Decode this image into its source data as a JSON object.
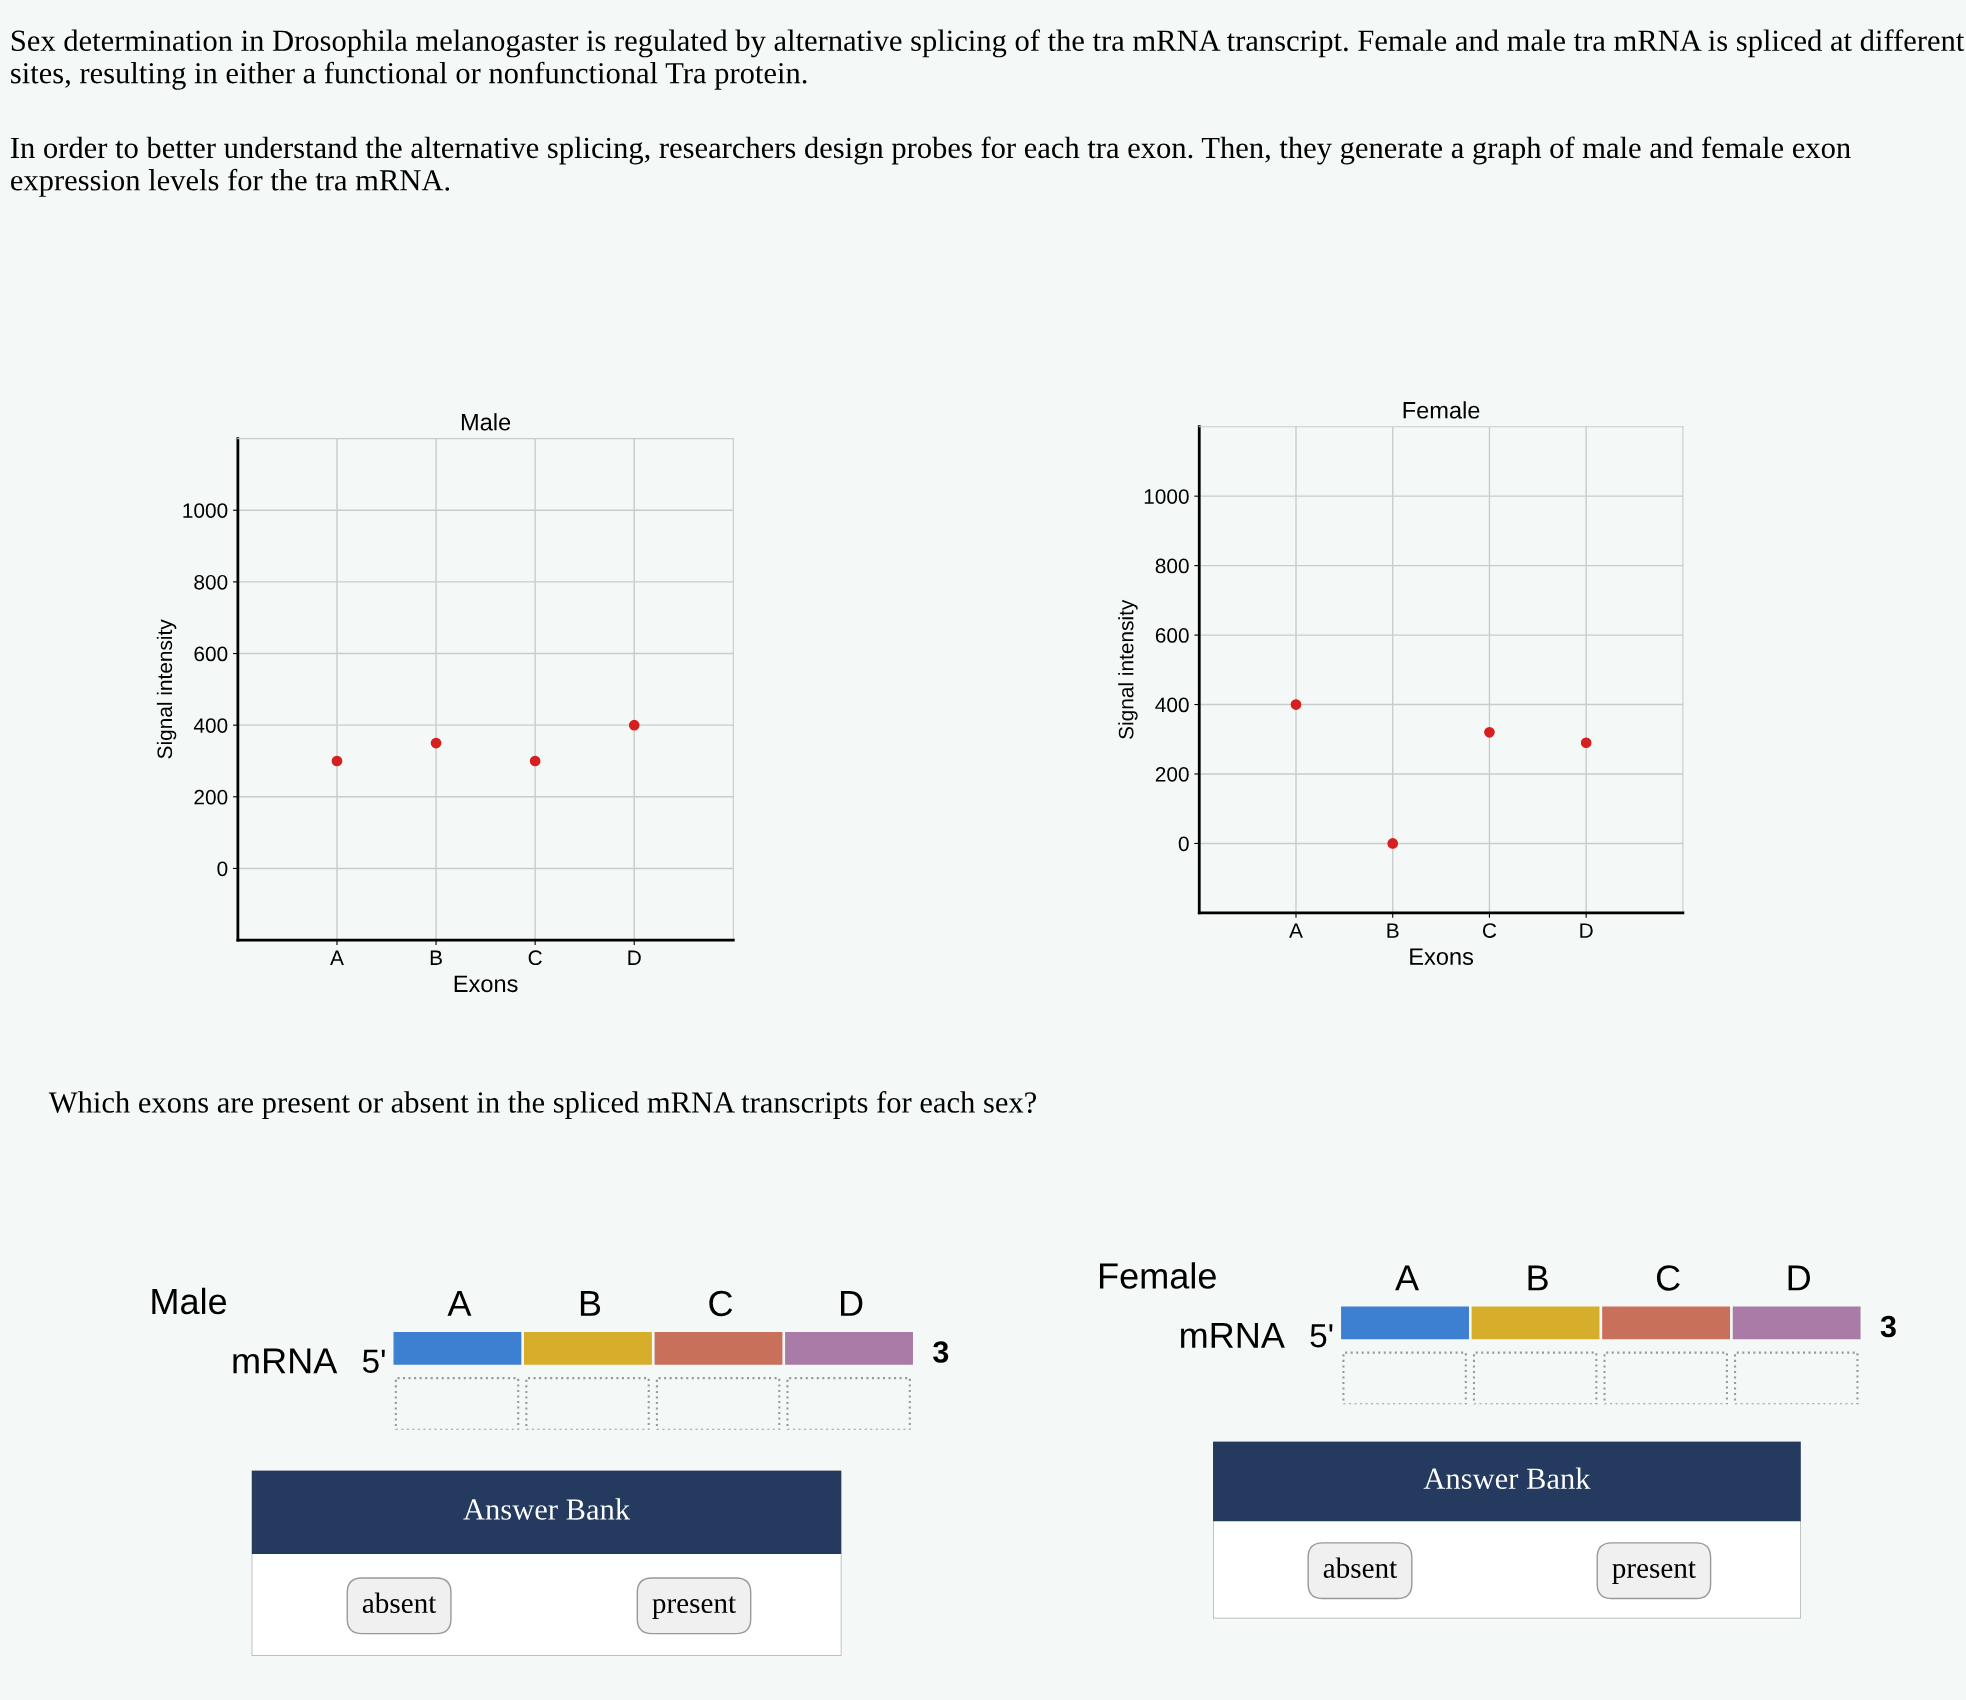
{
  "chart_data": [
    {
      "type": "other",
      "annotations": [
        "Sex determination in Drosophila melanogaster is regulated by alternative splicing of the tra mRNA transcript. Female and male tra mRNA is spliced at different sites, resulting in either a functional or nonfunctional Tra protein.",
        "In order to better understand the alternative splicing, researchers design probes for each tra exon. Then, they generate a graph of male and female exon expression levels for the tra mRNA."
      ]
    },
    {
      "type": "scatter",
      "title": "Male",
      "xlabel": "Exons",
      "ylabel": "Signal intensity",
      "categories": [
        "A",
        "B",
        "C",
        "D"
      ],
      "values": [
        300,
        350,
        300,
        400
      ],
      "color": "#d62020",
      "ylim": [
        -200,
        1200
      ],
      "yticks": [
        0,
        200,
        400,
        600,
        800,
        1000
      ],
      "grid": true,
      "marker": "circle"
    },
    {
      "type": "scatter",
      "title": "Female",
      "xlabel": "Exons",
      "ylabel": "Signal intensity",
      "categories": [
        "A",
        "B",
        "C",
        "D"
      ],
      "values": [
        400,
        0,
        320,
        290
      ],
      "color": "#d62020",
      "ylim": [
        -200,
        1200
      ],
      "yticks": [
        0,
        200,
        400,
        600,
        800,
        1000
      ],
      "grid": true,
      "marker": "circle"
    },
    {
      "type": "other",
      "annotations": [
        "Which exons are present or absent in the spliced mRNA transcripts for each sex?"
      ]
    },
    {
      "type": "other",
      "title": "Male",
      "categories": [
        "A",
        "B",
        "C",
        "D"
      ],
      "colors": [
        "#3d7fd0",
        "#d6ae2c",
        "#c8705a",
        "#a97ba6"
      ],
      "annotations": [
        "mRNA",
        "5'",
        "3"
      ]
    },
    {
      "type": "other",
      "title": "Female",
      "categories": [
        "A",
        "B",
        "C",
        "D"
      ],
      "colors": [
        "#3d7fd0",
        "#d6ae2c",
        "#c8705a",
        "#a97ba6"
      ],
      "annotations": [
        "mRNA",
        "5'",
        "3"
      ]
    },
    {
      "type": "other",
      "title": "Answer Bank",
      "annotations": [
        "absent",
        "present"
      ]
    },
    {
      "type": "other",
      "title": "Answer Bank",
      "annotations": [
        "absent",
        "present"
      ]
    }
  ]
}
